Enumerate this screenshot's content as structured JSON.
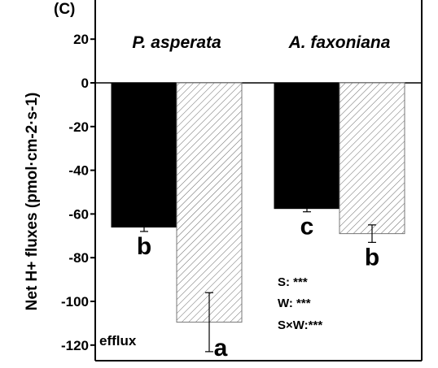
{
  "panel_label": "(C)",
  "chart_data": {
    "type": "bar",
    "ylabel": "Net H+ fluxes (pmol·cm-2·s-1)",
    "ylim": [
      -125,
      25
    ],
    "yticks": [
      20,
      0,
      -20,
      -40,
      -60,
      -80,
      -100,
      -120
    ],
    "groups": [
      {
        "name": "P. asperata",
        "bars": [
          {
            "value": -66,
            "error": 2,
            "fill": "solid",
            "letter": "b"
          },
          {
            "value": -109.5,
            "error": 13.5,
            "fill": "hatched",
            "letter": "a"
          }
        ]
      },
      {
        "name": "A. faxoniana",
        "bars": [
          {
            "value": -57.5,
            "error": 1.5,
            "fill": "solid",
            "letter": "c"
          },
          {
            "value": -69,
            "error": 4,
            "fill": "hatched",
            "letter": "b"
          }
        ]
      }
    ],
    "annotations": {
      "efflux": "efflux",
      "stats": [
        "S: ***",
        "W: ***",
        "S×W:***"
      ]
    },
    "colors": {
      "solid": "#000000",
      "hatch": "#555555",
      "hatch_bg": "#ffffff"
    }
  }
}
